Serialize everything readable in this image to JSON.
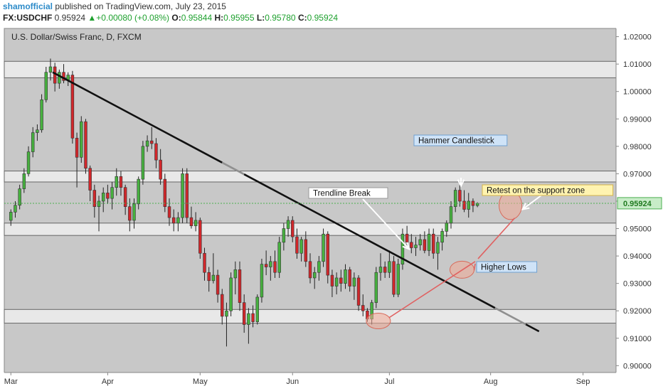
{
  "header": {
    "author": "shamofficial",
    "published": " published on TradingView.com, July 23, 2015",
    "symbol": "FX:USDCHF",
    "last": "0.95924",
    "change": "+0.00080 (+0.08%)",
    "o_label": "O:",
    "o_value": "0.95844",
    "h_label": "H:",
    "h_value": "0.95955",
    "l_label": "L:",
    "l_value": "0.95780",
    "c_label": "C:",
    "c_value": "0.95924"
  },
  "chart_data": {
    "type": "candlestick",
    "title": "U.S. Dollar/Swiss Franc, D, FXCM",
    "ylim": [
      0.8975,
      1.023
    ],
    "y_ticks": [
      "1.02000",
      "1.01000",
      "1.00000",
      "0.99000",
      "0.98000",
      "0.97000",
      "0.96000",
      "0.95000",
      "0.94000",
      "0.93000",
      "0.92000",
      "0.91000",
      "0.90000"
    ],
    "y_tick_values": [
      1.02,
      1.01,
      1.0,
      0.99,
      0.98,
      0.97,
      0.96,
      0.95,
      0.94,
      0.93,
      0.92,
      0.91,
      0.9
    ],
    "x_ticks": [
      {
        "label": "Mar",
        "bar": 0
      },
      {
        "label": "Apr",
        "bar": 22
      },
      {
        "label": "May",
        "bar": 43
      },
      {
        "label": "Jun",
        "bar": 64
      },
      {
        "label": "Jul",
        "bar": 86
      },
      {
        "label": "Aug",
        "bar": 109
      },
      {
        "label": "Sep",
        "bar": 130
      }
    ],
    "x_range": [
      -1.5,
      137.5
    ],
    "last_price": 0.95924,
    "last_price_label": "0.95924",
    "zones": [
      {
        "low": 1.005,
        "high": 1.011
      },
      {
        "low": 0.967,
        "high": 0.971
      },
      {
        "low": 0.9475,
        "high": 0.952
      },
      {
        "low": 0.9155,
        "high": 0.9205
      }
    ],
    "candles": [
      {
        "o": 0.953,
        "h": 0.957,
        "l": 0.951,
        "c": 0.956
      },
      {
        "o": 0.956,
        "h": 0.96,
        "l": 0.954,
        "c": 0.9585
      },
      {
        "o": 0.9585,
        "h": 0.966,
        "l": 0.957,
        "c": 0.9645
      },
      {
        "o": 0.9645,
        "h": 0.972,
        "l": 0.963,
        "c": 0.97
      },
      {
        "o": 0.97,
        "h": 0.98,
        "l": 0.969,
        "c": 0.978
      },
      {
        "o": 0.978,
        "h": 0.987,
        "l": 0.976,
        "c": 0.985
      },
      {
        "o": 0.985,
        "h": 0.988,
        "l": 0.982,
        "c": 0.986
      },
      {
        "o": 0.986,
        "h": 0.999,
        "l": 0.985,
        "c": 0.997
      },
      {
        "o": 0.997,
        "h": 1.009,
        "l": 0.996,
        "c": 1.007
      },
      {
        "o": 1.007,
        "h": 1.012,
        "l": 1.004,
        "c": 1.009
      },
      {
        "o": 1.009,
        "h": 1.0105,
        "l": 1.0,
        "c": 1.003
      },
      {
        "o": 1.003,
        "h": 1.008,
        "l": 1.001,
        "c": 1.007
      },
      {
        "o": 1.007,
        "h": 1.01,
        "l": 1.003,
        "c": 1.004
      },
      {
        "o": 1.004,
        "h": 1.007,
        "l": 1.002,
        "c": 1.006
      },
      {
        "o": 1.006,
        "h": 1.0075,
        "l": 0.981,
        "c": 0.983
      },
      {
        "o": 0.983,
        "h": 0.985,
        "l": 0.965,
        "c": 0.976
      },
      {
        "o": 0.976,
        "h": 0.991,
        "l": 0.974,
        "c": 0.989
      },
      {
        "o": 0.989,
        "h": 0.99,
        "l": 0.97,
        "c": 0.972
      },
      {
        "o": 0.972,
        "h": 0.973,
        "l": 0.96,
        "c": 0.964
      },
      {
        "o": 0.964,
        "h": 0.966,
        "l": 0.954,
        "c": 0.958
      },
      {
        "o": 0.958,
        "h": 0.962,
        "l": 0.949,
        "c": 0.96
      },
      {
        "o": 0.96,
        "h": 0.965,
        "l": 0.956,
        "c": 0.963
      },
      {
        "o": 0.963,
        "h": 0.966,
        "l": 0.959,
        "c": 0.961
      },
      {
        "o": 0.961,
        "h": 0.967,
        "l": 0.957,
        "c": 0.965
      },
      {
        "o": 0.965,
        "h": 0.972,
        "l": 0.962,
        "c": 0.969
      },
      {
        "o": 0.969,
        "h": 0.971,
        "l": 0.962,
        "c": 0.965
      },
      {
        "o": 0.965,
        "h": 0.966,
        "l": 0.955,
        "c": 0.958
      },
      {
        "o": 0.958,
        "h": 0.961,
        "l": 0.949,
        "c": 0.953
      },
      {
        "o": 0.953,
        "h": 0.961,
        "l": 0.95,
        "c": 0.959
      },
      {
        "o": 0.959,
        "h": 0.969,
        "l": 0.957,
        "c": 0.968
      },
      {
        "o": 0.968,
        "h": 0.982,
        "l": 0.966,
        "c": 0.98
      },
      {
        "o": 0.98,
        "h": 0.984,
        "l": 0.978,
        "c": 0.982
      },
      {
        "o": 0.982,
        "h": 0.987,
        "l": 0.979,
        "c": 0.981
      },
      {
        "o": 0.981,
        "h": 0.983,
        "l": 0.972,
        "c": 0.975
      },
      {
        "o": 0.975,
        "h": 0.979,
        "l": 0.966,
        "c": 0.968
      },
      {
        "o": 0.968,
        "h": 0.97,
        "l": 0.956,
        "c": 0.958
      },
      {
        "o": 0.958,
        "h": 0.961,
        "l": 0.951,
        "c": 0.954
      },
      {
        "o": 0.954,
        "h": 0.957,
        "l": 0.949,
        "c": 0.952
      },
      {
        "o": 0.952,
        "h": 0.956,
        "l": 0.949,
        "c": 0.954
      },
      {
        "o": 0.954,
        "h": 0.972,
        "l": 0.952,
        "c": 0.97
      },
      {
        "o": 0.97,
        "h": 0.972,
        "l": 0.952,
        "c": 0.954
      },
      {
        "o": 0.954,
        "h": 0.958,
        "l": 0.95,
        "c": 0.951
      },
      {
        "o": 0.951,
        "h": 0.956,
        "l": 0.949,
        "c": 0.953
      },
      {
        "o": 0.953,
        "h": 0.954,
        "l": 0.939,
        "c": 0.941
      },
      {
        "o": 0.941,
        "h": 0.943,
        "l": 0.931,
        "c": 0.934
      },
      {
        "o": 0.934,
        "h": 0.936,
        "l": 0.927,
        "c": 0.931
      },
      {
        "o": 0.931,
        "h": 0.941,
        "l": 0.93,
        "c": 0.933
      },
      {
        "o": 0.933,
        "h": 0.935,
        "l": 0.923,
        "c": 0.926
      },
      {
        "o": 0.926,
        "h": 0.928,
        "l": 0.915,
        "c": 0.918
      },
      {
        "o": 0.918,
        "h": 0.923,
        "l": 0.907,
        "c": 0.92
      },
      {
        "o": 0.92,
        "h": 0.934,
        "l": 0.918,
        "c": 0.932
      },
      {
        "o": 0.932,
        "h": 0.938,
        "l": 0.926,
        "c": 0.935
      },
      {
        "o": 0.935,
        "h": 0.938,
        "l": 0.92,
        "c": 0.923
      },
      {
        "o": 0.923,
        "h": 0.926,
        "l": 0.912,
        "c": 0.915
      },
      {
        "o": 0.915,
        "h": 0.921,
        "l": 0.908,
        "c": 0.919
      },
      {
        "o": 0.919,
        "h": 0.922,
        "l": 0.914,
        "c": 0.916
      },
      {
        "o": 0.916,
        "h": 0.926,
        "l": 0.915,
        "c": 0.925
      },
      {
        "o": 0.925,
        "h": 0.939,
        "l": 0.923,
        "c": 0.937
      },
      {
        "o": 0.937,
        "h": 0.942,
        "l": 0.933,
        "c": 0.936
      },
      {
        "o": 0.936,
        "h": 0.94,
        "l": 0.931,
        "c": 0.938
      },
      {
        "o": 0.938,
        "h": 0.942,
        "l": 0.932,
        "c": 0.934
      },
      {
        "o": 0.934,
        "h": 0.947,
        "l": 0.932,
        "c": 0.945
      },
      {
        "o": 0.945,
        "h": 0.952,
        "l": 0.942,
        "c": 0.95
      },
      {
        "o": 0.95,
        "h": 0.9545,
        "l": 0.947,
        "c": 0.953
      },
      {
        "o": 0.953,
        "h": 0.9545,
        "l": 0.945,
        "c": 0.947
      },
      {
        "o": 0.947,
        "h": 0.95,
        "l": 0.939,
        "c": 0.941
      },
      {
        "o": 0.941,
        "h": 0.947,
        "l": 0.938,
        "c": 0.946
      },
      {
        "o": 0.946,
        "h": 0.949,
        "l": 0.936,
        "c": 0.938
      },
      {
        "o": 0.938,
        "h": 0.941,
        "l": 0.93,
        "c": 0.932
      },
      {
        "o": 0.932,
        "h": 0.936,
        "l": 0.928,
        "c": 0.934
      },
      {
        "o": 0.934,
        "h": 0.94,
        "l": 0.931,
        "c": 0.938
      },
      {
        "o": 0.938,
        "h": 0.95,
        "l": 0.936,
        "c": 0.948
      },
      {
        "o": 0.948,
        "h": 0.949,
        "l": 0.93,
        "c": 0.933
      },
      {
        "o": 0.933,
        "h": 0.935,
        "l": 0.925,
        "c": 0.929
      },
      {
        "o": 0.929,
        "h": 0.934,
        "l": 0.926,
        "c": 0.932
      },
      {
        "o": 0.932,
        "h": 0.935,
        "l": 0.927,
        "c": 0.93
      },
      {
        "o": 0.93,
        "h": 0.937,
        "l": 0.928,
        "c": 0.935
      },
      {
        "o": 0.935,
        "h": 0.936,
        "l": 0.927,
        "c": 0.929
      },
      {
        "o": 0.929,
        "h": 0.934,
        "l": 0.924,
        "c": 0.932
      },
      {
        "o": 0.932,
        "h": 0.933,
        "l": 0.92,
        "c": 0.922
      },
      {
        "o": 0.922,
        "h": 0.926,
        "l": 0.918,
        "c": 0.92
      },
      {
        "o": 0.92,
        "h": 0.921,
        "l": 0.916,
        "c": 0.917
      },
      {
        "o": 0.917,
        "h": 0.924,
        "l": 0.915,
        "c": 0.923
      },
      {
        "o": 0.923,
        "h": 0.936,
        "l": 0.921,
        "c": 0.934
      },
      {
        "o": 0.934,
        "h": 0.941,
        "l": 0.931,
        "c": 0.936
      },
      {
        "o": 0.936,
        "h": 0.938,
        "l": 0.932,
        "c": 0.934
      },
      {
        "o": 0.934,
        "h": 0.942,
        "l": 0.932,
        "c": 0.938
      },
      {
        "o": 0.938,
        "h": 0.94,
        "l": 0.925,
        "c": 0.926
      },
      {
        "o": 0.926,
        "h": 0.939,
        "l": 0.925,
        "c": 0.937
      },
      {
        "o": 0.937,
        "h": 0.95,
        "l": 0.935,
        "c": 0.948
      },
      {
        "o": 0.948,
        "h": 0.951,
        "l": 0.944,
        "c": 0.945
      },
      {
        "o": 0.945,
        "h": 0.948,
        "l": 0.941,
        "c": 0.943
      },
      {
        "o": 0.943,
        "h": 0.947,
        "l": 0.94,
        "c": 0.944
      },
      {
        "o": 0.944,
        "h": 0.948,
        "l": 0.942,
        "c": 0.946
      },
      {
        "o": 0.946,
        "h": 0.949,
        "l": 0.941,
        "c": 0.942
      },
      {
        "o": 0.942,
        "h": 0.95,
        "l": 0.94,
        "c": 0.948
      },
      {
        "o": 0.948,
        "h": 0.95,
        "l": 0.939,
        "c": 0.941
      },
      {
        "o": 0.941,
        "h": 0.947,
        "l": 0.935,
        "c": 0.945
      },
      {
        "o": 0.945,
        "h": 0.95,
        "l": 0.942,
        "c": 0.949
      },
      {
        "o": 0.949,
        "h": 0.953,
        "l": 0.947,
        "c": 0.952
      },
      {
        "o": 0.952,
        "h": 0.96,
        "l": 0.95,
        "c": 0.958
      },
      {
        "o": 0.958,
        "h": 0.965,
        "l": 0.956,
        "c": 0.964
      },
      {
        "o": 0.964,
        "h": 0.966,
        "l": 0.958,
        "c": 0.96
      },
      {
        "o": 0.96,
        "h": 0.964,
        "l": 0.956,
        "c": 0.957
      },
      {
        "o": 0.957,
        "h": 0.963,
        "l": 0.954,
        "c": 0.96
      },
      {
        "o": 0.96,
        "h": 0.961,
        "l": 0.956,
        "c": 0.9584
      },
      {
        "o": 0.9584,
        "h": 0.9596,
        "l": 0.9578,
        "c": 0.9592
      }
    ],
    "trendline": {
      "x1": 9.5,
      "y1": 1.007,
      "x2": 120,
      "y2": 0.9125,
      "faded_from": 48,
      "faded_to": 53,
      "faded_from2": 110
    },
    "support_line": {
      "y": 0.9592
    },
    "annotations": [
      {
        "text": "Hammer Candlestick",
        "style": "blue"
      },
      {
        "text": "Trendline Break",
        "style": "white"
      },
      {
        "text": "Retest on the support zone",
        "style": "yellow"
      },
      {
        "text": "Higher Lows",
        "style": "blue"
      }
    ]
  }
}
